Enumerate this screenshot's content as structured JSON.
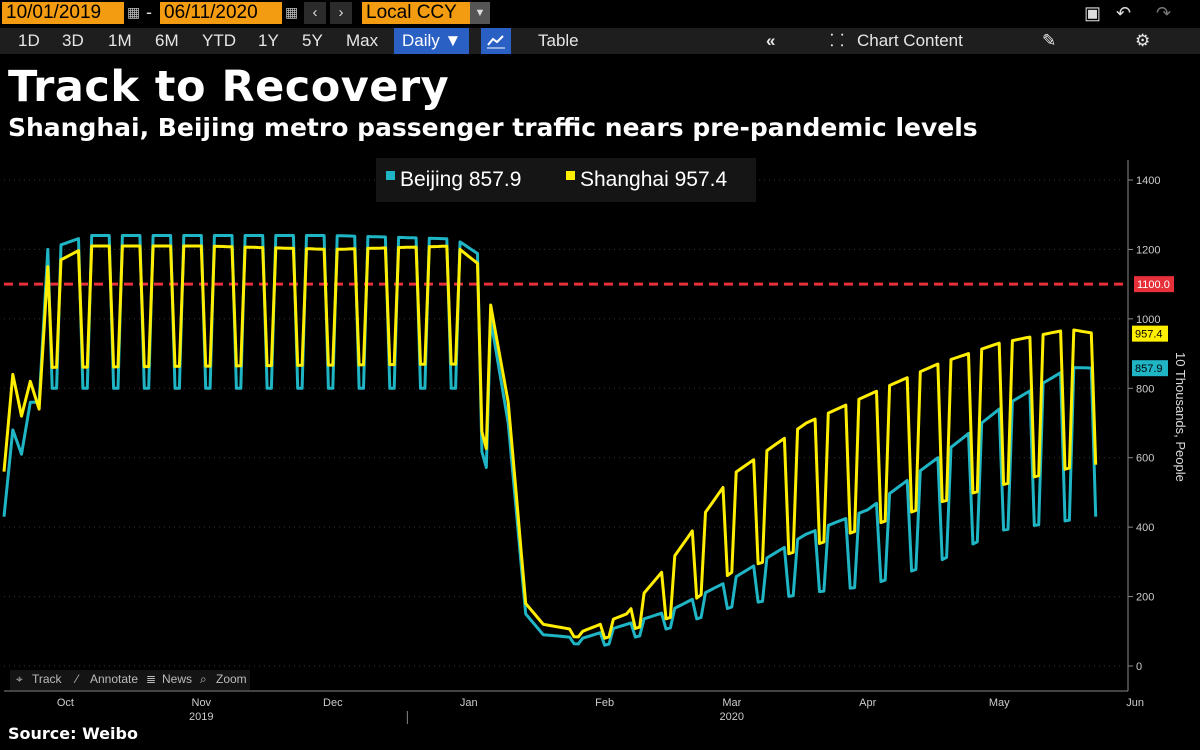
{
  "header": {
    "start_date": "10/01/2019",
    "end_date": "06/11/2020",
    "currency": "Local CCY",
    "range_buttons": [
      "1D",
      "3D",
      "1M",
      "6M",
      "YTD",
      "1Y",
      "5Y",
      "Max"
    ],
    "frequency": "Daily ▼",
    "table_label": "Table",
    "chart_content_label": "Chart Content"
  },
  "title": "Track to Recovery",
  "subtitle": "Shanghai, Beijing metro passenger traffic nears pre-pandemic levels",
  "source": "Source: Weibo",
  "legend": {
    "beijing": "Beijing 857.9",
    "shanghai": "Shanghai 957.4"
  },
  "tools": {
    "track": "Track",
    "annotate": "Annotate",
    "news": "News",
    "zoom": "Zoom"
  },
  "colors": {
    "beijing": "#1fb5c4",
    "shanghai": "#ffee00",
    "threshold": "#e8303a",
    "accent": "#f39c12",
    "active": "#2a5fc4"
  },
  "chart_data": {
    "type": "line",
    "ylabel": "10 Thousands, People",
    "ylim": [
      0,
      1450
    ],
    "yticks": [
      0,
      200,
      400,
      600,
      800,
      1000,
      1200,
      1400
    ],
    "x_ticks": [
      {
        "date": "2019-10-15",
        "label": "Oct",
        "year": ""
      },
      {
        "date": "2019-11-15",
        "label": "Nov",
        "year": "2019"
      },
      {
        "date": "2019-12-15",
        "label": "Dec",
        "year": ""
      },
      {
        "date": "2020-01-15",
        "label": "Jan",
        "year": ""
      },
      {
        "date": "2020-02-15",
        "label": "Feb",
        "year": ""
      },
      {
        "date": "2020-03-15",
        "label": "Mar",
        "year": "2020"
      },
      {
        "date": "2020-04-15",
        "label": "Apr",
        "year": ""
      },
      {
        "date": "2020-05-15",
        "label": "May",
        "year": ""
      },
      {
        "date": "2020-06-15",
        "label": "Jun",
        "year": ""
      }
    ],
    "xlim": [
      "2019-10-01",
      "2020-06-12"
    ],
    "reference_line": {
      "value": 1100.0,
      "label": "1100.0"
    },
    "last_value_labels": {
      "shanghai": "957.4",
      "beijing": "857.9"
    },
    "series": [
      {
        "name": "Beijing",
        "anchors": [
          [
            "2019-10-01",
            430
          ],
          [
            "2019-10-03",
            680
          ],
          [
            "2019-10-05",
            610
          ],
          [
            "2019-10-07",
            760
          ],
          [
            "2019-10-09",
            760
          ],
          [
            "2019-10-11",
            1200
          ],
          [
            "2019-10-20",
            1240
          ],
          [
            "2019-11-15",
            1240
          ],
          [
            "2019-12-15",
            1240
          ],
          [
            "2020-01-12",
            1230
          ],
          [
            "2020-01-18",
            1180
          ],
          [
            "2020-01-20",
            1000
          ],
          [
            "2020-01-24",
            700
          ],
          [
            "2020-01-28",
            150
          ],
          [
            "2020-02-01",
            90
          ],
          [
            "2020-02-10",
            80
          ],
          [
            "2020-02-20",
            120
          ],
          [
            "2020-03-01",
            160
          ],
          [
            "2020-03-15",
            250
          ],
          [
            "2020-04-01",
            380
          ],
          [
            "2020-04-15",
            450
          ],
          [
            "2020-05-01",
            600
          ],
          [
            "2020-05-15",
            740
          ],
          [
            "2020-05-31",
            860
          ],
          [
            "2020-06-06",
            857.9
          ]
        ],
        "weekend_low": [
          [
            "2019-10-10",
            800
          ],
          [
            "2020-01-14",
            800
          ],
          [
            "2020-01-30",
            70
          ],
          [
            "2020-02-15",
            60
          ],
          [
            "2020-03-01",
            110
          ],
          [
            "2020-03-15",
            170
          ],
          [
            "2020-04-01",
            210
          ],
          [
            "2020-04-15",
            230
          ],
          [
            "2020-05-01",
            300
          ],
          [
            "2020-05-15",
            390
          ],
          [
            "2020-05-31",
            420
          ],
          [
            "2020-06-06",
            430
          ]
        ]
      },
      {
        "name": "Shanghai",
        "anchors": [
          [
            "2019-10-01",
            560
          ],
          [
            "2019-10-03",
            840
          ],
          [
            "2019-10-05",
            720
          ],
          [
            "2019-10-07",
            820
          ],
          [
            "2019-10-09",
            740
          ],
          [
            "2019-10-11",
            1150
          ],
          [
            "2019-10-20",
            1210
          ],
          [
            "2019-11-15",
            1210
          ],
          [
            "2019-12-15",
            1200
          ],
          [
            "2020-01-12",
            1210
          ],
          [
            "2020-01-18",
            1150
          ],
          [
            "2020-01-20",
            1040
          ],
          [
            "2020-01-24",
            760
          ],
          [
            "2020-01-28",
            180
          ],
          [
            "2020-02-01",
            120
          ],
          [
            "2020-02-10",
            100
          ],
          [
            "2020-02-20",
            150
          ],
          [
            "2020-03-01",
            300
          ],
          [
            "2020-03-15",
            550
          ],
          [
            "2020-04-01",
            700
          ],
          [
            "2020-04-15",
            780
          ],
          [
            "2020-05-01",
            870
          ],
          [
            "2020-05-15",
            930
          ],
          [
            "2020-05-31",
            970
          ],
          [
            "2020-06-06",
            957.4
          ]
        ],
        "weekend_low": [
          [
            "2019-10-10",
            860
          ],
          [
            "2020-01-14",
            870
          ],
          [
            "2020-01-30",
            90
          ],
          [
            "2020-02-15",
            80
          ],
          [
            "2020-03-01",
            140
          ],
          [
            "2020-03-15",
            270
          ],
          [
            "2020-04-01",
            340
          ],
          [
            "2020-04-15",
            400
          ],
          [
            "2020-05-01",
            470
          ],
          [
            "2020-05-15",
            520
          ],
          [
            "2020-05-31",
            570
          ],
          [
            "2020-06-06",
            580
          ]
        ]
      }
    ]
  }
}
